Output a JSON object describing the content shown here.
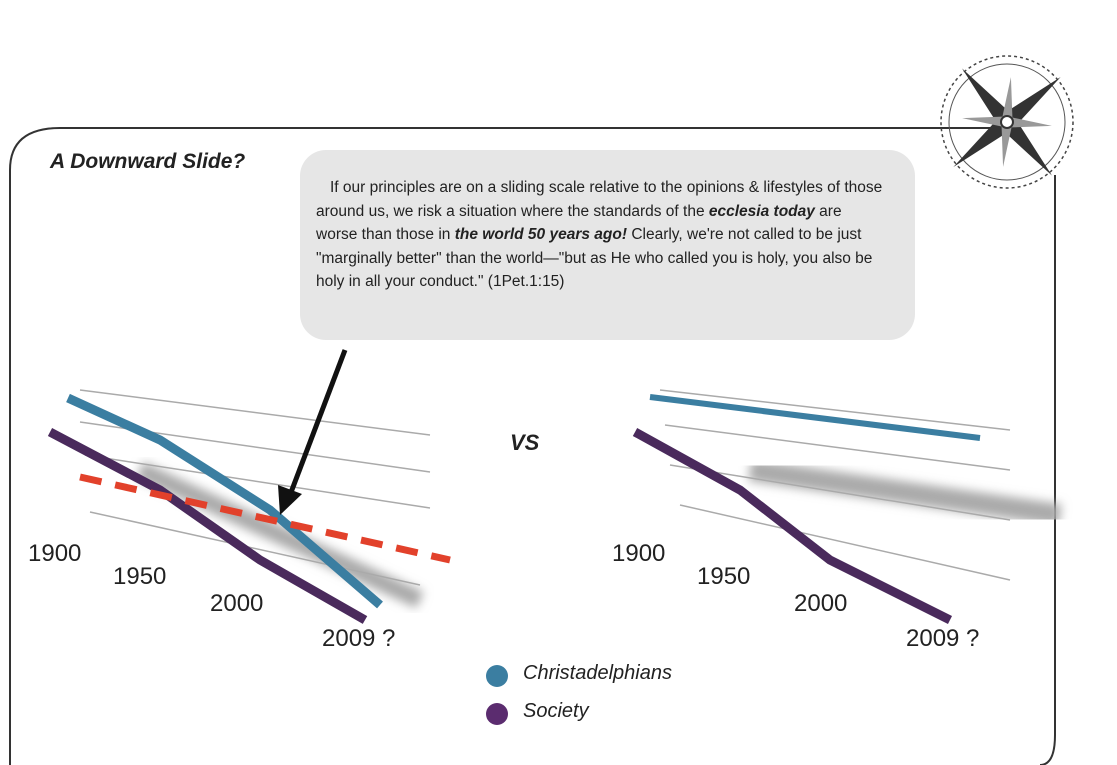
{
  "title": "A Downward Slide?",
  "callout": {
    "segments": [
      {
        "text": "If our principles are on a sliding scale relative to the opinions & lifestyles of those around us, we risk a situation where the standards of the ",
        "emphasis": false
      },
      {
        "text": "ecclesia today",
        "emphasis": true
      },
      {
        "text": " are worse than those in ",
        "emphasis": false
      },
      {
        "text": "the world 50 years ago!",
        "emphasis": true
      },
      {
        "text": " Clearly, we're not called to be just \"marginally better\" than the world—\"but as He who called you is holy, you also be holy in all your conduct.\" (1Pet.1:15)",
        "emphasis": false
      }
    ]
  },
  "versus": "VS",
  "left_years": [
    "1900",
    "1950",
    "2000",
    "2009 ?"
  ],
  "right_years": [
    "1900",
    "1950",
    "2000",
    "2009 ?"
  ],
  "legend": [
    {
      "name": "Christadelphians",
      "color": "#3b7ea1"
    },
    {
      "name": "Society",
      "color": "#5b2c6f"
    }
  ]
}
